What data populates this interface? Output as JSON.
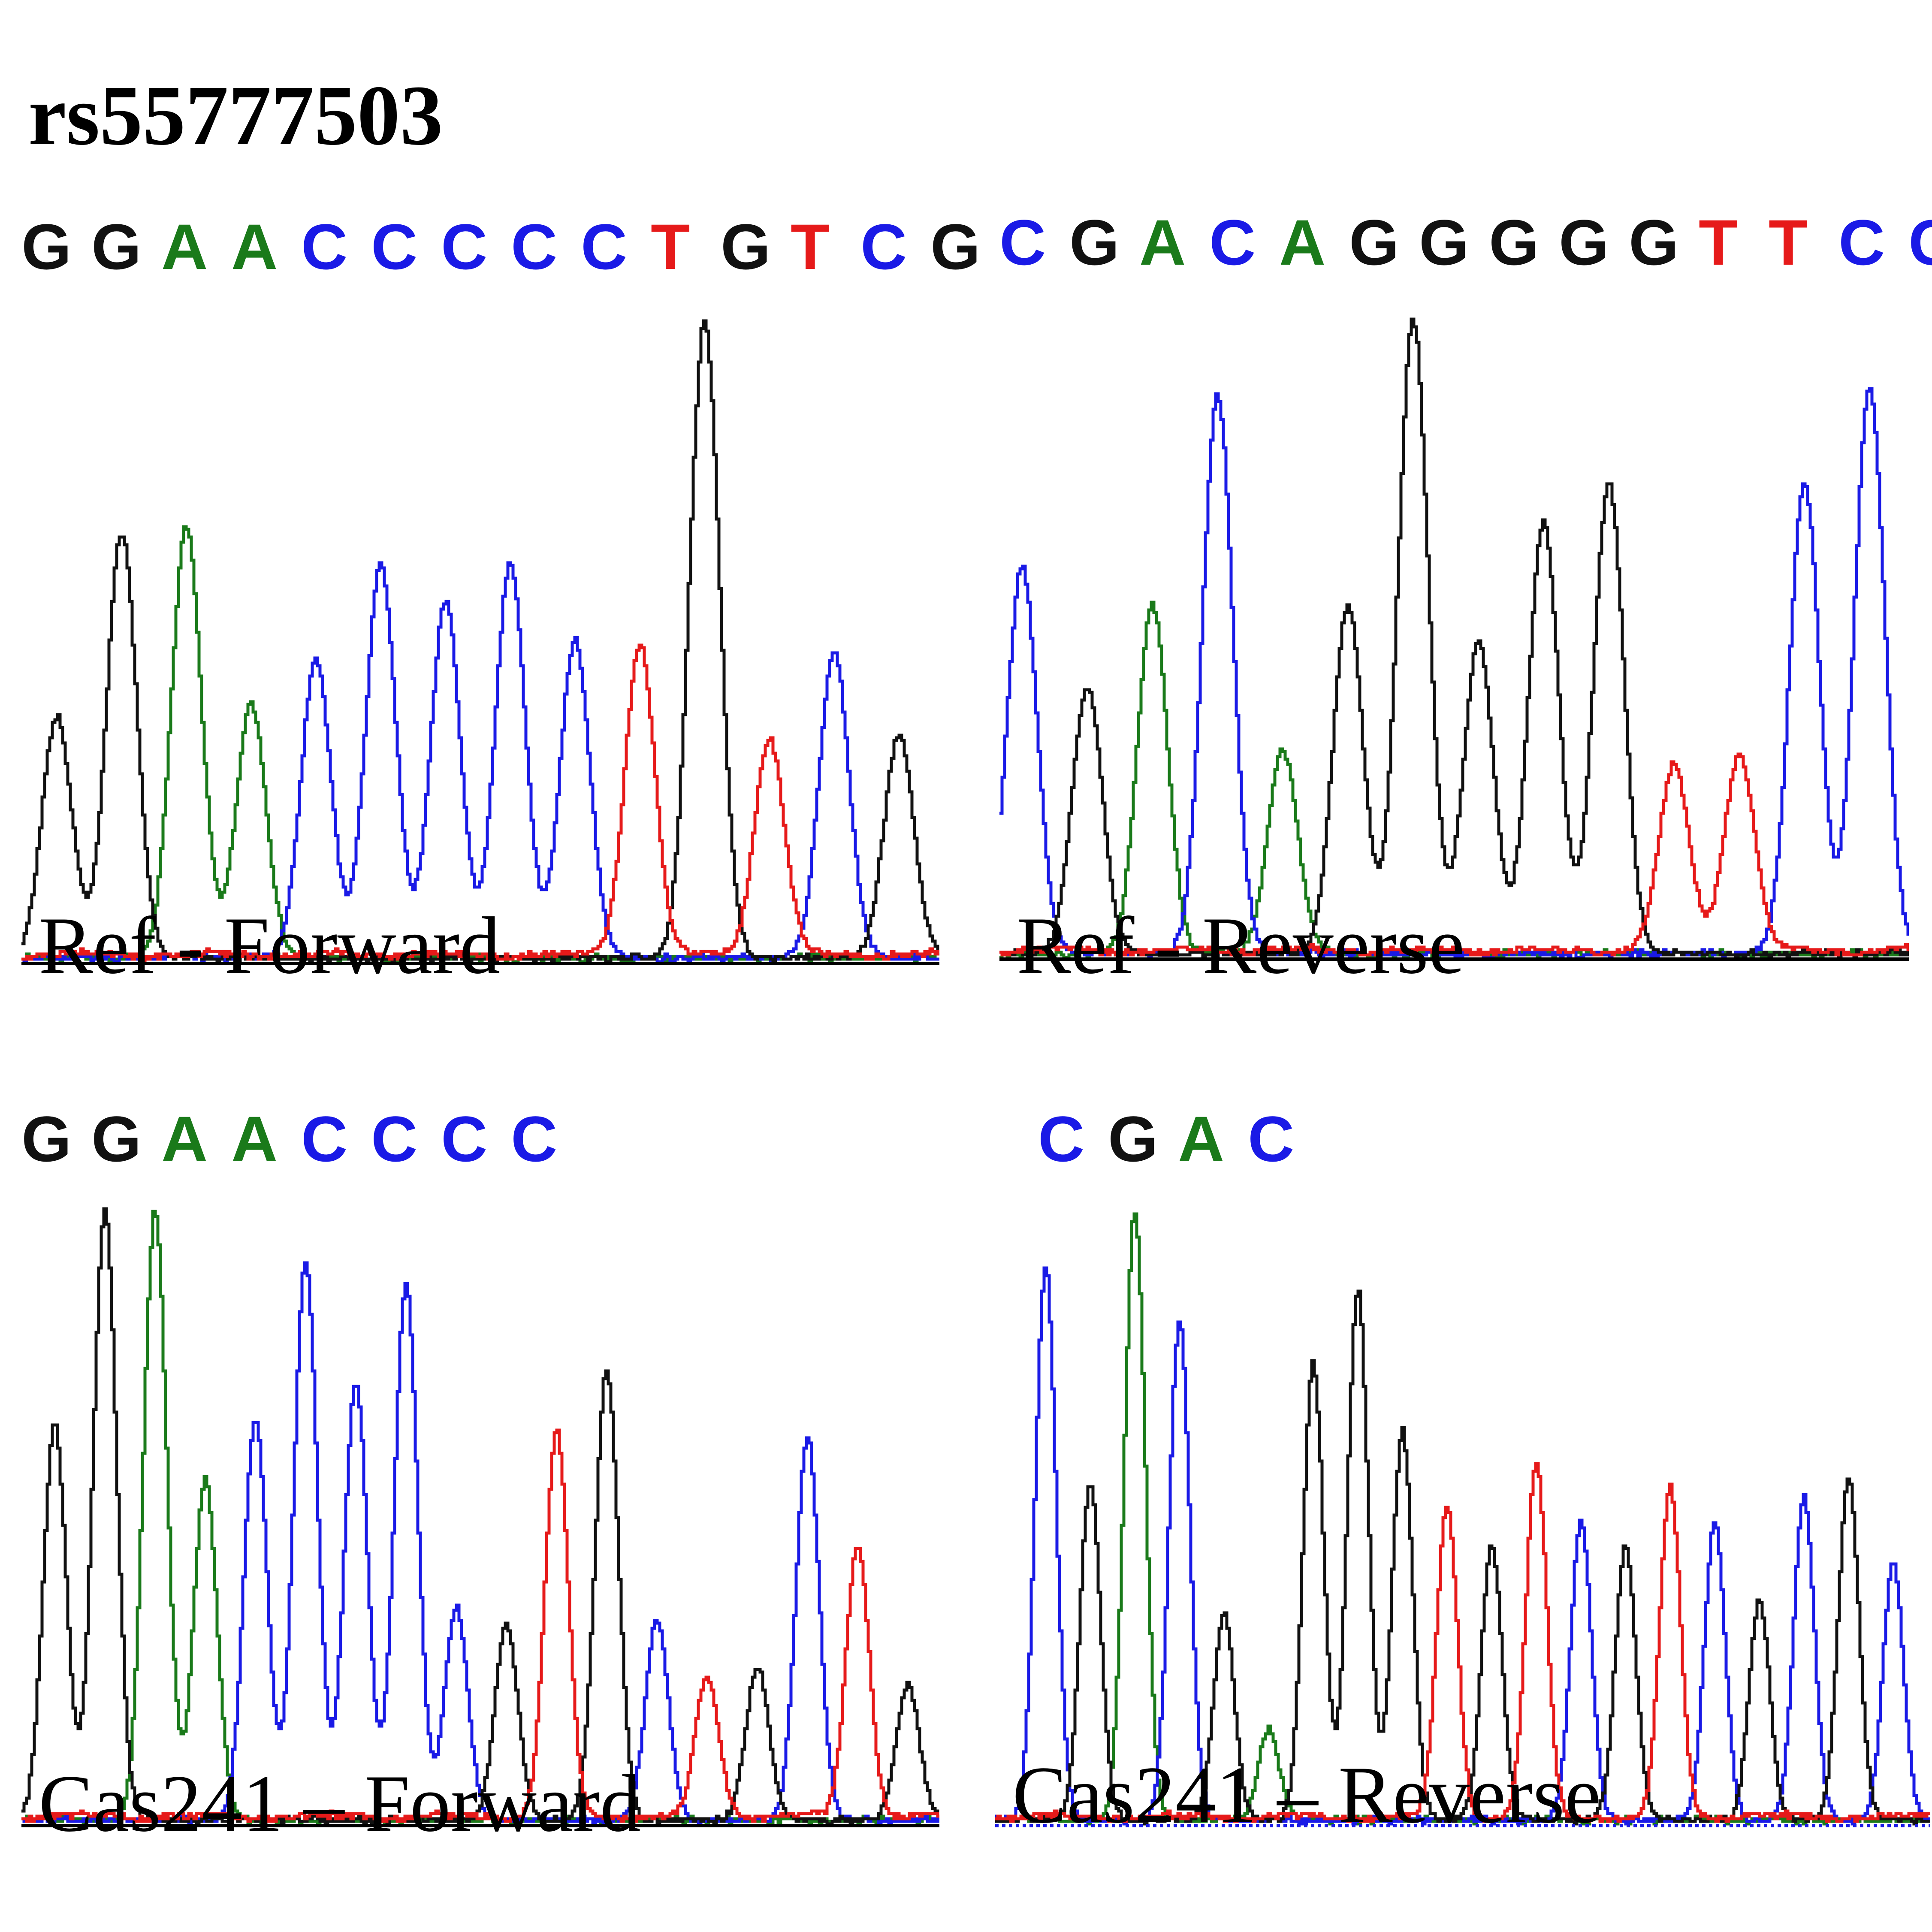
{
  "figure": {
    "title": "rs55777503"
  },
  "colors": {
    "A": "#1a7a1a",
    "C": "#1a1ae6",
    "G": "#111111",
    "T": "#e61a1a",
    "baseline": "#000000"
  },
  "panels": [
    {
      "id": "ref-forward",
      "caption": "Ref - Forward",
      "bases": [
        "G",
        "G",
        "A",
        "A",
        "C",
        "C",
        "C",
        "C",
        "C",
        "T",
        "G",
        "T",
        "C",
        "G"
      ],
      "peaks": [
        {
          "base": "G",
          "height": 0.38
        },
        {
          "base": "G",
          "height": 0.67
        },
        {
          "base": "A",
          "height": 0.68
        },
        {
          "base": "A",
          "height": 0.4
        },
        {
          "base": "C",
          "height": 0.47
        },
        {
          "base": "C",
          "height": 0.62
        },
        {
          "base": "C",
          "height": 0.56
        },
        {
          "base": "C",
          "height": 0.62
        },
        {
          "base": "C",
          "height": 0.5
        },
        {
          "base": "T",
          "height": 0.49
        },
        {
          "base": "G",
          "height": 1.0
        },
        {
          "base": "T",
          "height": 0.34
        },
        {
          "base": "C",
          "height": 0.48
        },
        {
          "base": "G",
          "height": 0.35
        }
      ],
      "dotted_baseline": false
    },
    {
      "id": "ref-reverse",
      "caption": "Ref - Reverse",
      "bases": [
        "C",
        "G",
        "A",
        "C",
        "A",
        "G",
        "G",
        "G",
        "G",
        "G",
        "T",
        "T",
        "C",
        "C"
      ],
      "peaks": [
        {
          "base": "C",
          "height": 0.61
        },
        {
          "base": "G",
          "height": 0.42
        },
        {
          "base": "A",
          "height": 0.55
        },
        {
          "base": "C",
          "height": 0.88
        },
        {
          "base": "A",
          "height": 0.32
        },
        {
          "base": "G",
          "height": 0.55
        },
        {
          "base": "G",
          "height": 1.0
        },
        {
          "base": "G",
          "height": 0.49
        },
        {
          "base": "G",
          "height": 0.68
        },
        {
          "base": "G",
          "height": 0.74
        },
        {
          "base": "T",
          "height": 0.29
        },
        {
          "base": "T",
          "height": 0.31
        },
        {
          "base": "C",
          "height": 0.74
        },
        {
          "base": "C",
          "height": 0.89
        }
      ],
      "dotted_baseline": false
    },
    {
      "id": "cas241-forward",
      "caption": "Cas241 – Forward",
      "bases": [
        "G",
        "G",
        "A",
        "A",
        "C",
        "C",
        "C",
        "C"
      ],
      "peaks": [
        {
          "base": "G",
          "height": 0.65
        },
        {
          "base": "G",
          "height": 1.0
        },
        {
          "base": "A",
          "height": 1.0
        },
        {
          "base": "A",
          "height": 0.56
        },
        {
          "base": "C",
          "height": 0.66
        },
        {
          "base": "C",
          "height": 0.92
        },
        {
          "base": "C",
          "height": 0.72
        },
        {
          "base": "C",
          "height": 0.88
        },
        {
          "base": "C",
          "height": 0.35
        },
        {
          "base": "G",
          "height": 0.32
        },
        {
          "base": "T",
          "height": 0.63
        },
        {
          "base": "G",
          "height": 0.74
        },
        {
          "base": "C",
          "height": 0.33
        },
        {
          "base": "T",
          "height": 0.23
        },
        {
          "base": "G",
          "height": 0.25
        },
        {
          "base": "C",
          "height": 0.63
        },
        {
          "base": "T",
          "height": 0.45
        },
        {
          "base": "G",
          "height": 0.22
        }
      ],
      "dotted_baseline": false
    },
    {
      "id": "cas241-reverse",
      "caption": "Cas241 – Reverse",
      "bases": [
        "C",
        "G",
        "A",
        "C"
      ],
      "peaks": [
        {
          "base": "C",
          "height": 0.91
        },
        {
          "base": "G",
          "height": 0.55
        },
        {
          "base": "A",
          "height": 1.0
        },
        {
          "base": "C",
          "height": 0.82
        },
        {
          "base": "G",
          "height": 0.34
        },
        {
          "base": "A",
          "height": 0.15
        },
        {
          "base": "G",
          "height": 0.75
        },
        {
          "base": "G",
          "height": 0.87
        },
        {
          "base": "G",
          "height": 0.64
        },
        {
          "base": "T",
          "height": 0.51
        },
        {
          "base": "G",
          "height": 0.45
        },
        {
          "base": "T",
          "height": 0.58
        },
        {
          "base": "C",
          "height": 0.49
        },
        {
          "base": "G",
          "height": 0.45
        },
        {
          "base": "T",
          "height": 0.54
        },
        {
          "base": "C",
          "height": 0.49
        },
        {
          "base": "G",
          "height": 0.36
        },
        {
          "base": "C",
          "height": 0.53
        },
        {
          "base": "G",
          "height": 0.56
        },
        {
          "base": "C",
          "height": 0.42
        }
      ],
      "dotted_baseline": true
    }
  ]
}
